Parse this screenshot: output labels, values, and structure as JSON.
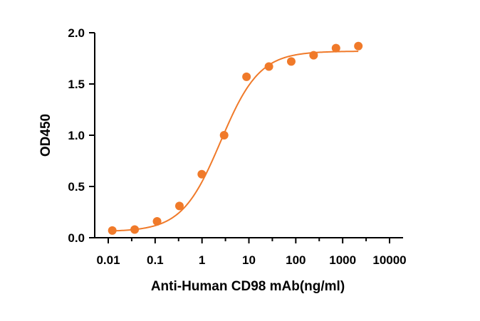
{
  "chart_data": {
    "type": "scatter",
    "xlabel": "Anti-Human CD98 mAb(ng/ml)",
    "ylabel": "OD450",
    "x_scale": "log",
    "xlim": [
      0.01,
      10000
    ],
    "ylim": [
      0,
      2.0
    ],
    "x_ticks": [
      0.01,
      0.1,
      1,
      10,
      100,
      1000,
      10000
    ],
    "x_tick_labels": [
      "0.01",
      "0.1",
      "1",
      "10",
      "100",
      "1000",
      "10000"
    ],
    "y_ticks": [
      0,
      0.5,
      1.0,
      1.5,
      2.0
    ],
    "y_tick_labels": [
      "0.0",
      "0.5",
      "1.0",
      "1.5",
      "2.0"
    ],
    "grid": false,
    "color": "#F07A2A",
    "series": [
      {
        "points": [
          {
            "x": 0.0122,
            "y": 0.07
          },
          {
            "x": 0.0366,
            "y": 0.08
          },
          {
            "x": 0.11,
            "y": 0.16
          },
          {
            "x": 0.33,
            "y": 0.31
          },
          {
            "x": 0.988,
            "y": 0.62
          },
          {
            "x": 2.96,
            "y": 1.0
          },
          {
            "x": 8.89,
            "y": 1.57
          },
          {
            "x": 26.7,
            "y": 1.67
          },
          {
            "x": 80,
            "y": 1.72
          },
          {
            "x": 240,
            "y": 1.78
          },
          {
            "x": 720,
            "y": 1.85
          },
          {
            "x": 2160,
            "y": 1.87
          }
        ],
        "fit": {
          "model": "4PL",
          "bottom": 0.06,
          "top": 1.82,
          "ec50": 2.5,
          "hill": 1.05
        }
      }
    ]
  }
}
